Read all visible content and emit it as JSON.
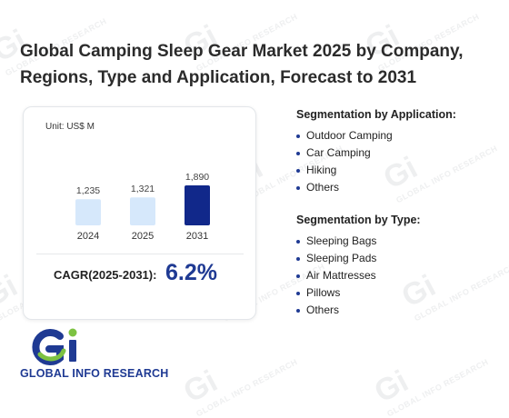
{
  "title": "Global Camping Sleep Gear Market 2025 by Company, Regions, Type and Application, Forecast to 2031",
  "unit_label": "Unit: US$ M",
  "chart_data": {
    "type": "bar",
    "categories": [
      "2024",
      "2025",
      "2031"
    ],
    "values": [
      1235,
      1321,
      1890
    ],
    "value_labels": [
      "1,235",
      "1,321",
      "1,890"
    ],
    "colors": [
      "#d6e8fb",
      "#d6e8fb",
      "#11288a"
    ],
    "ylim": [
      0,
      1890
    ]
  },
  "cagr": {
    "label": "CAGR(2025-2031):",
    "value": "6.2%"
  },
  "segmentation_application": {
    "heading": "Segmentation by Application:",
    "items": [
      "Outdoor Camping",
      "Car Camping",
      "Hiking",
      "Others"
    ]
  },
  "segmentation_type": {
    "heading": "Segmentation by Type:",
    "items": [
      "Sleeping Bags",
      "Sleeping Pads",
      "Air Mattresses",
      "Pillows",
      "Others"
    ]
  },
  "brand": {
    "name": "GLOBAL INFO RESEARCH",
    "watermark": "GLOBAL INFO RESEARCH",
    "mark": "Gi"
  },
  "colors": {
    "accent": "#1f3a93",
    "bar_light": "#d6e8fb",
    "bar_dark": "#11288a",
    "logo_green": "#7dc242"
  }
}
